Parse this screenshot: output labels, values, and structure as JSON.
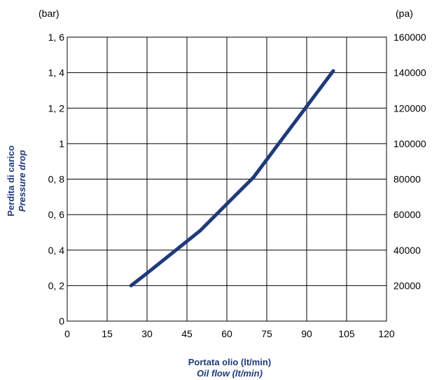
{
  "chart_data": {
    "type": "line",
    "left_unit": "(bar)",
    "right_unit": "(pa)",
    "ylabel": "Perdita di carico",
    "ylabel_en": "Pressure drop",
    "xlabel": "Portata olio (lt/min)",
    "xlabel_en": "Oil flow (lt/min)",
    "x_ticks": [
      "0",
      "15",
      "30",
      "45",
      "60",
      "75",
      "90",
      "105",
      "120"
    ],
    "y_ticks_left": [
      "0",
      "0, 2",
      "0, 4",
      "0, 6",
      "0, 8",
      "1",
      "1, 2",
      "1, 4",
      "1, 6"
    ],
    "y_ticks_right": [
      "20000",
      "40000",
      "60000",
      "80000",
      "100000",
      "120000",
      "140000",
      "160000"
    ],
    "xlim": [
      0,
      120
    ],
    "ylim": [
      0,
      1.6
    ],
    "grid": true,
    "line_color": "#1f3a7a",
    "series": [
      {
        "x": [
          24,
          30,
          40,
          50,
          60,
          70,
          80,
          90,
          100
        ],
        "y": [
          0.2,
          0.27,
          0.39,
          0.51,
          0.66,
          0.81,
          1.01,
          1.21,
          1.41
        ]
      }
    ]
  }
}
